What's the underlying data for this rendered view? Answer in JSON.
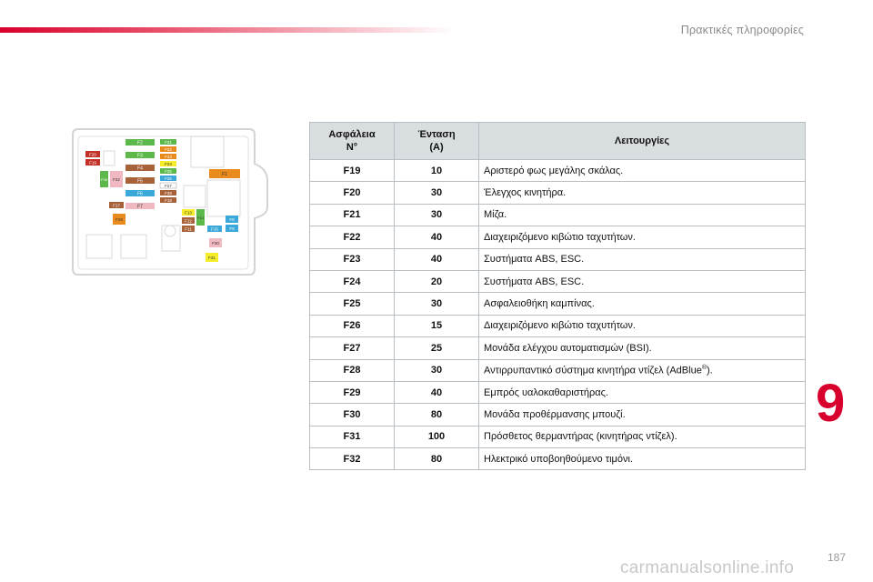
{
  "header": {
    "section_title": "Πρακτικές πληροφορίες"
  },
  "chapter_number": "9",
  "page_number": "187",
  "watermark": "carmanualsonline.info",
  "table": {
    "headers": {
      "fuse": "Ασφάλεια",
      "fuse_sub": "N°",
      "amp": "Ένταση",
      "amp_sub": "(A)",
      "function": "Λειτουργίες"
    },
    "rows": [
      {
        "fuse": "F19",
        "amp": "10",
        "function": "Αριστερό φως μεγάλης σκάλας."
      },
      {
        "fuse": "F20",
        "amp": "30",
        "function": "Έλεγχος κινητήρα."
      },
      {
        "fuse": "F21",
        "amp": "30",
        "function": "Μίζα."
      },
      {
        "fuse": "F22",
        "amp": "40",
        "function": "Διαχειριζόμενο κιβώτιο ταχυτήτων."
      },
      {
        "fuse": "F23",
        "amp": "40",
        "function": "Συστήματα ABS, ESC."
      },
      {
        "fuse": "F24",
        "amp": "20",
        "function": "Συστήματα ABS, ESC."
      },
      {
        "fuse": "F25",
        "amp": "30",
        "function": "Ασφαλειοθήκη καμπίνας."
      },
      {
        "fuse": "F26",
        "amp": "15",
        "function": "Διαχειριζόμενο κιβώτιο ταχυτήτων."
      },
      {
        "fuse": "F27",
        "amp": "25",
        "function": "Μονάδα ελέγχου αυτοματισμών (BSI)."
      },
      {
        "fuse": "F28",
        "amp": "30",
        "function": "Αντιρρυπαντικό σύστημα κινητήρα ντίζελ (AdBlue",
        "sup": "®",
        "function_end": ")."
      },
      {
        "fuse": "F29",
        "amp": "40",
        "function": "Εμπρός υαλοκαθαριστήρας."
      },
      {
        "fuse": "F30",
        "amp": "80",
        "function": "Μονάδα προθέρμανσης μπουζί."
      },
      {
        "fuse": "F31",
        "amp": "100",
        "function": "Πρόσθετος θερμαντήρας (κινητήρας ντίζελ)."
      },
      {
        "fuse": "F32",
        "amp": "80",
        "function": "Ηλεκτρικό υποβοηθούμενο τιμόνι."
      }
    ]
  },
  "diagram": {
    "labels": {
      "F1": "F1",
      "F2": "F2",
      "F3": "F3",
      "F4": "F4",
      "F5": "F5",
      "F6": "F6",
      "F7": "F7",
      "F8": "F8",
      "F11": "F11",
      "F12": "F12",
      "F13": "F13",
      "F14": "F14",
      "F15": "F15",
      "F17": "F17",
      "F18": "F18",
      "F19": "F19",
      "F20": "F20",
      "F21": "F21",
      "F22": "F22",
      "F23": "F23",
      "F24": "F24",
      "F25": "F25",
      "F26": "F26",
      "F27": "F27",
      "F28": "F28",
      "F29": "F29",
      "F30": "F30",
      "F31": "F31",
      "F32": "F32"
    },
    "colors": {
      "green": "#5cb84a",
      "orange": "#e88a1c",
      "brown": "#a8623a",
      "yellow": "#f5ec2a",
      "blue": "#3aa8d8",
      "pink": "#f0b8c0",
      "red": "#c23028",
      "white": "#ffffff",
      "gray": "#dadada"
    }
  }
}
